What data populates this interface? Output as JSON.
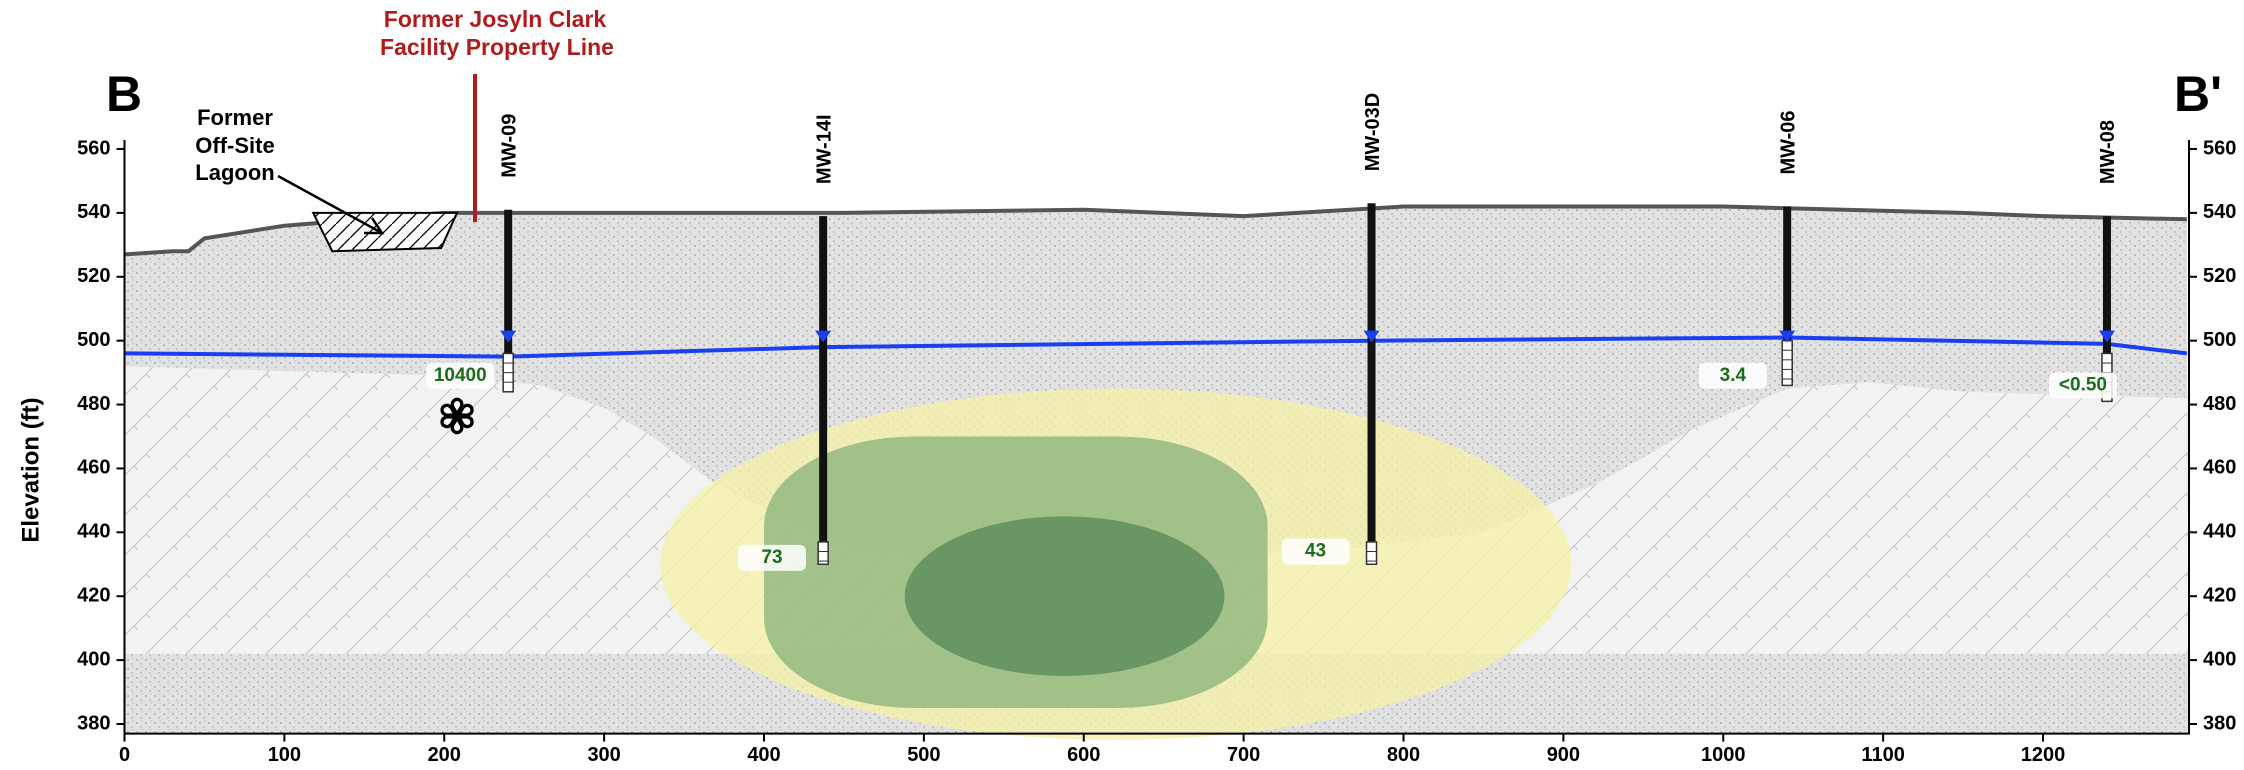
{
  "section": {
    "start": "B",
    "end": "B'"
  },
  "property_line": [
    "Former Josyln Clark",
    "Facility Property Line"
  ],
  "lagoon": [
    "Former",
    "Off-Site",
    "Lagoon"
  ],
  "axes": {
    "y_label": "Elevation (ft)",
    "yticks": [
      380,
      400,
      420,
      440,
      460,
      480,
      500,
      520,
      540,
      560
    ],
    "xticks": [
      0,
      100,
      200,
      300,
      400,
      500,
      600,
      700,
      800,
      900,
      1000,
      1100,
      1200
    ]
  },
  "wells": [
    {
      "name": "MW-09",
      "result": "10400"
    },
    {
      "name": "MW-14I",
      "result": "73"
    },
    {
      "name": "MW-03D",
      "result": "43"
    },
    {
      "name": "MW-06",
      "result": "3.4"
    },
    {
      "name": "MW-08",
      "result": "<0.50"
    }
  ]
}
